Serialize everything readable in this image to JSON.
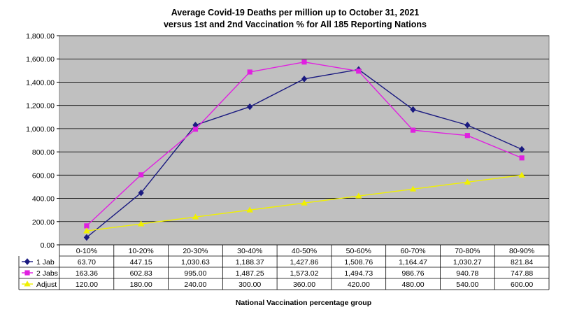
{
  "chart_data": {
    "type": "line",
    "title_line1": "Average Covid-19 Deaths per million up to October 31, 2021",
    "title_line2": "versus 1st and 2nd Vaccination % for All 185 Reporting Nations",
    "xlabel": "National Vaccination percentage group",
    "categories": [
      "0-10%",
      "10-20%",
      "20-30%",
      "30-40%",
      "40-50%",
      "50-60%",
      "60-70%",
      "70-80%",
      "80-90%"
    ],
    "ylim": [
      0,
      1800
    ],
    "yticks": [
      "0.00",
      "200.00",
      "400.00",
      "600.00",
      "800.00",
      "1,000.00",
      "1,200.00",
      "1,400.00",
      "1,600.00",
      "1,800.00"
    ],
    "grid": true,
    "legend": "data-table",
    "series": [
      {
        "name": "1 Jab",
        "color": "#1a1a80",
        "marker": "diamond",
        "values": [
          63.7,
          447.15,
          1030.63,
          1188.37,
          1427.86,
          1508.76,
          1164.47,
          1030.27,
          821.84
        ],
        "labels": [
          "63.70",
          "447.15",
          "1,030.63",
          "1,188.37",
          "1,427.86",
          "1,508.76",
          "1,164.47",
          "1,030.27",
          "821.84"
        ]
      },
      {
        "name": "2 Jabs",
        "color": "#e020e0",
        "marker": "square",
        "values": [
          163.36,
          602.83,
          995.0,
          1487.25,
          1573.02,
          1494.73,
          986.76,
          940.78,
          747.88
        ],
        "labels": [
          "163.36",
          "602.83",
          "995.00",
          "1,487.25",
          "1,573.02",
          "1,494.73",
          "986.76",
          "940.78",
          "747.88"
        ]
      },
      {
        "name": "Adjust",
        "color": "#f0f000",
        "marker": "triangle",
        "values": [
          120,
          180,
          240,
          300,
          360,
          420,
          480,
          540,
          600
        ],
        "labels": [
          "120.00",
          "180.00",
          "240.00",
          "300.00",
          "360.00",
          "420.00",
          "480.00",
          "540.00",
          "600.00"
        ]
      }
    ]
  }
}
